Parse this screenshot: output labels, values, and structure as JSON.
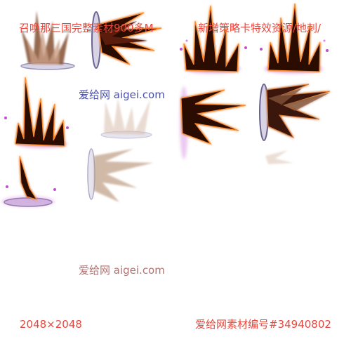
{
  "captions": {
    "title_left": "召唤那三国完整素材900多M",
    "title_right": "新增策略卡特效资源/地刺/",
    "watermark_mid": "爱给网 aigei.com",
    "watermark_bottom": "爱给网 aigei.com",
    "dimensions": "2048×2048",
    "asset_id": "爱给网素材编号#34940802"
  },
  "colors": {
    "caption_red": "#e8463c",
    "watermark_blue": "#4b4fa6",
    "watermark_muted": "#b07474",
    "spike_dark": "#2a0a04",
    "spike_glow": "#ff8a2a",
    "spike_faded": "#d9bfae",
    "magic_purple": "#c050d0"
  }
}
